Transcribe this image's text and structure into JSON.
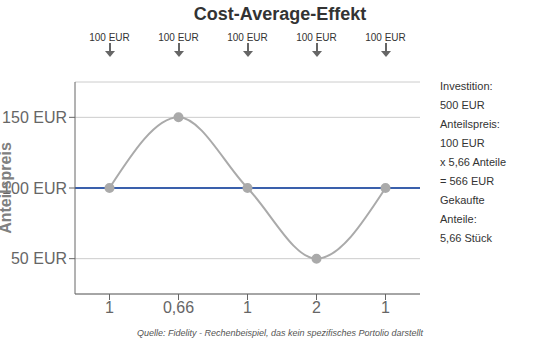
{
  "chart_data": {
    "type": "line",
    "title": "Cost-Average-Effekt",
    "subtitle": "Quelle: Fidelity - Rechenbeispiel, das kein spezifisches Portolio darstellt",
    "y_label": "Anteilspreis",
    "categories": [
      "1",
      "0,66",
      "1",
      "2",
      "1"
    ],
    "values": [
      100,
      150,
      100,
      50,
      100
    ],
    "color": "#aaaaaa",
    "marker": "circle",
    "ylim": [
      25,
      175
    ],
    "yticks": [
      {
        "value": 50,
        "label": "50 EUR"
      },
      {
        "value": 100,
        "label": "100 EUR"
      },
      {
        "value": 150,
        "label": "150 EUR"
      }
    ],
    "grid": true,
    "hline": {
      "value": 100,
      "color": "#003399"
    },
    "annotations": [
      "100 EUR",
      "100 EUR",
      "100 EUR",
      "100 EUR",
      "100 EUR",
      "Investition:",
      "500 EUR",
      "Anteilspreis:",
      "100 EUR",
      "x 5,66 Anteile",
      "= 566 EUR",
      "Gekaufte",
      "Anteile:",
      "5,66 Stück"
    ]
  }
}
